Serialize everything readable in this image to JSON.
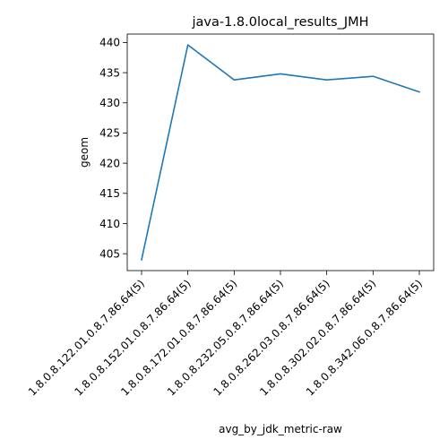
{
  "chart_data": {
    "type": "line",
    "title": "java-1.8.0local_results_JMH",
    "xlabel": "avg_by_jdk_metric-raw",
    "ylabel": "geom",
    "categories": [
      "1.8.0.8.122.01.0.8.7.86.64(5)",
      "1.8.0.8.152.01.0.8.7.86.64(5)",
      "1.8.0.8.172.01.0.8.7.86.64(5)",
      "1.8.0.8.232.05.0.8.7.86.64(5)",
      "1.8.0.8.262.03.0.8.7.86.64(5)",
      "1.8.0.8.302.02.0.8.7.86.64(5)",
      "1.8.0.8.342.06.0.8.7.86.64(5)"
    ],
    "series": [
      {
        "values": [
          404.0,
          439.6,
          433.8,
          434.8,
          433.8,
          434.4,
          431.8
        ]
      }
    ],
    "ylim": [
      402.2,
      441.4
    ],
    "yticks": [
      405,
      410,
      415,
      420,
      425,
      430,
      435,
      440
    ],
    "grid": false,
    "legend": "none",
    "line_color": "#1f77b4"
  }
}
